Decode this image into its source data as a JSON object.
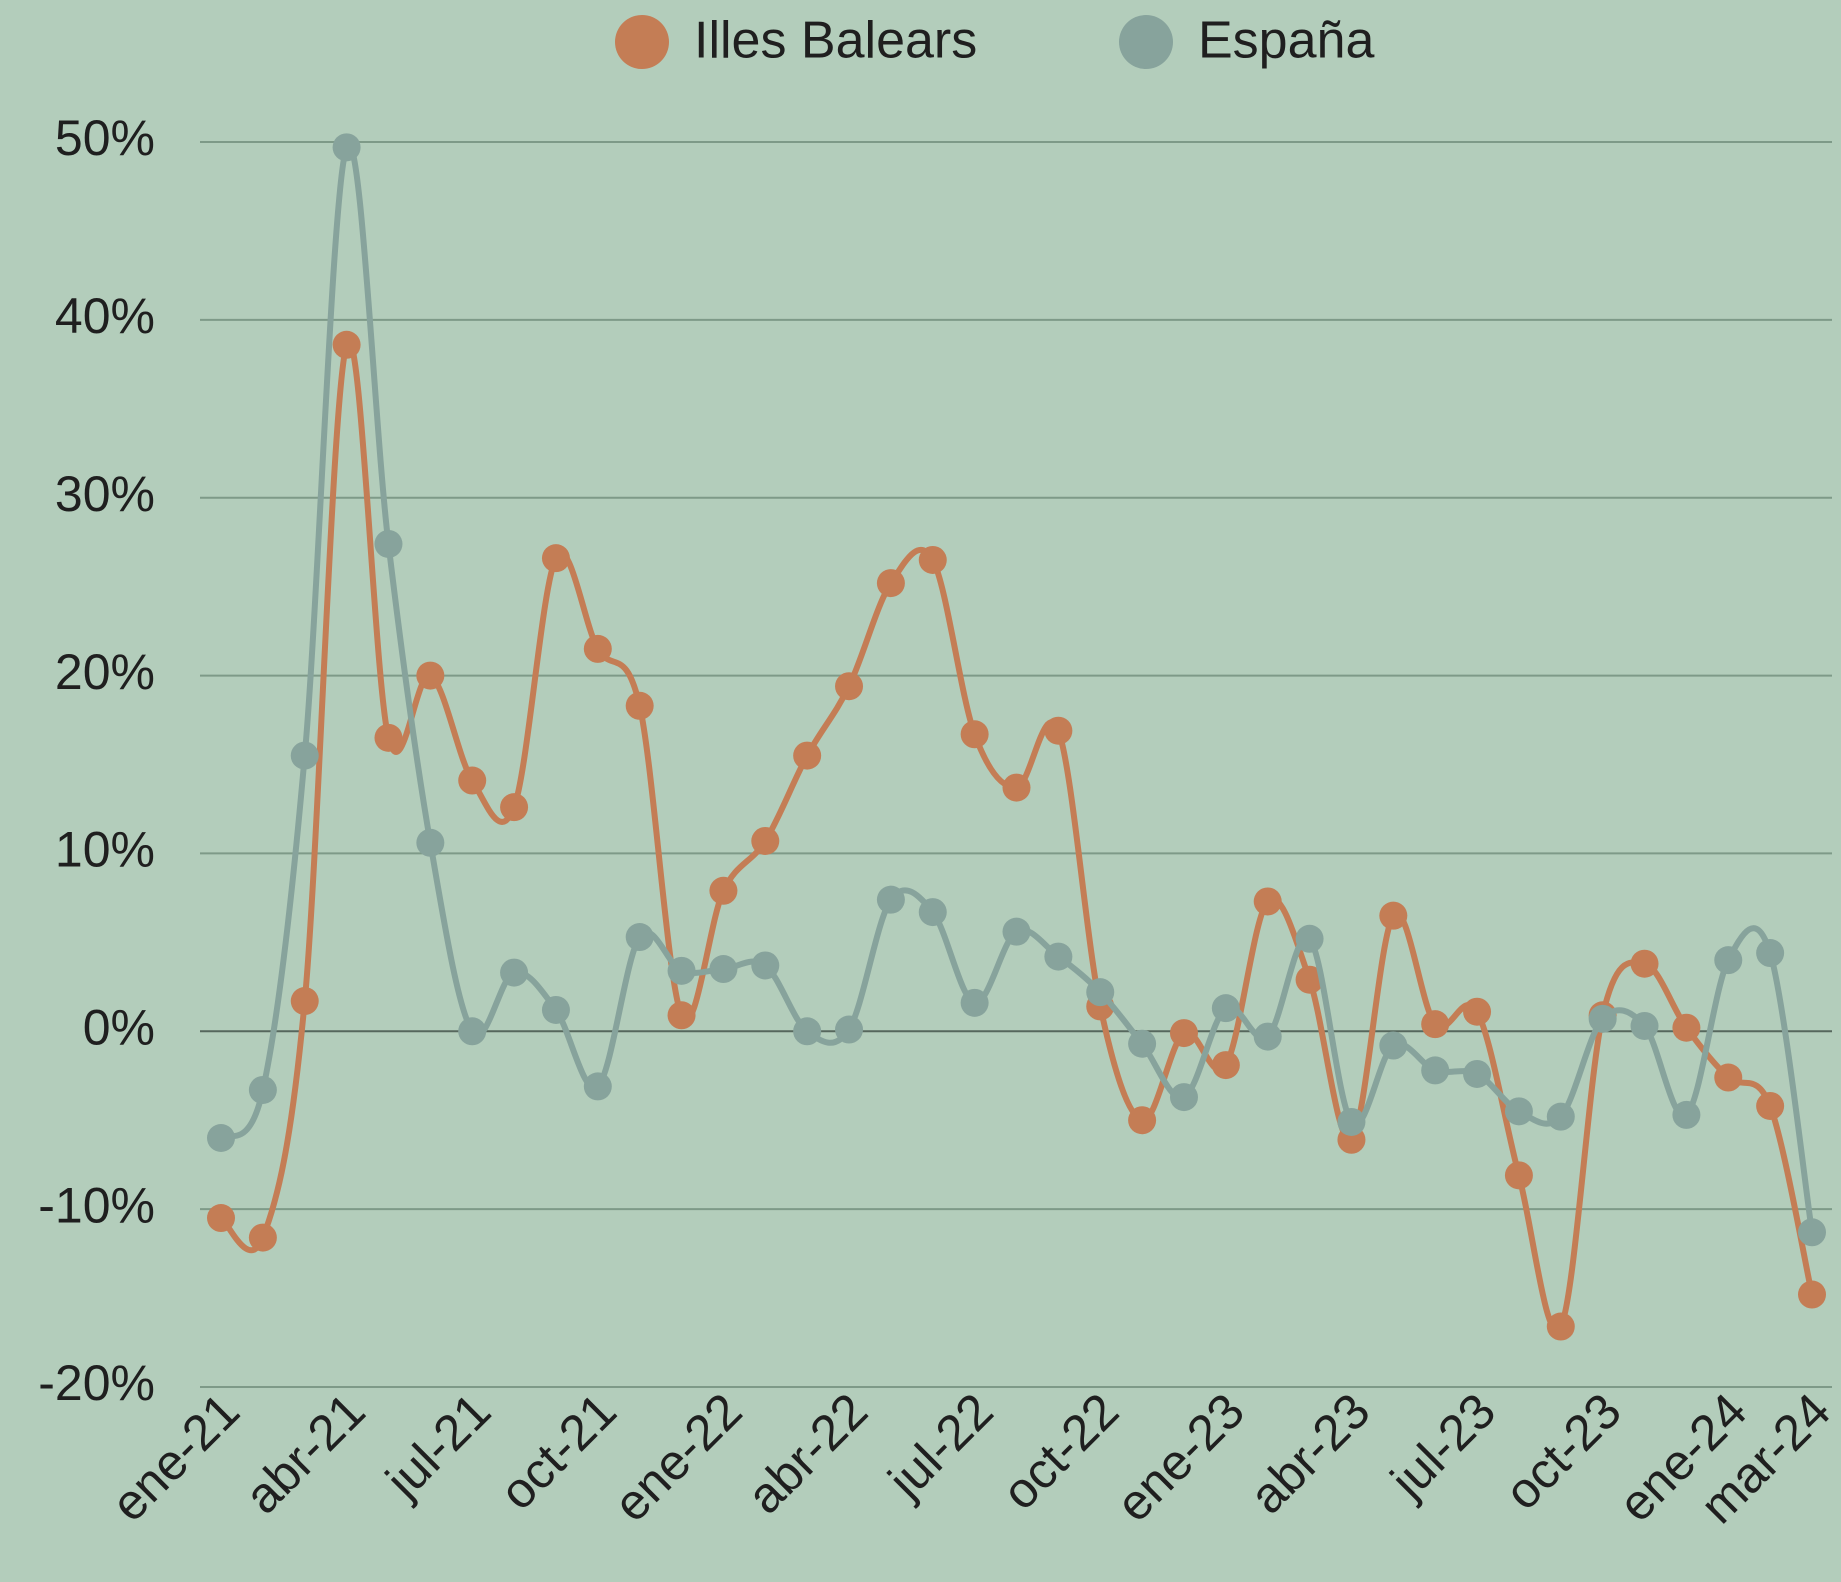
{
  "chart_data": {
    "type": "line",
    "categories": [
      "ene-21",
      null,
      null,
      "abr-21",
      null,
      null,
      "jul-21",
      null,
      null,
      "oct-21",
      null,
      null,
      "ene-22",
      null,
      null,
      "abr-22",
      null,
      null,
      "jul-22",
      null,
      null,
      "oct-22",
      null,
      null,
      "ene-23",
      null,
      null,
      "abr-23",
      null,
      null,
      "jul-23",
      null,
      null,
      "oct-23",
      null,
      null,
      "ene-24",
      null,
      "mar-24"
    ],
    "series": [
      {
        "name": "Illes Balears",
        "color": "#c47d55",
        "values": [
          -10.5,
          -11.6,
          1.7,
          38.6,
          16.5,
          20.0,
          14.1,
          12.6,
          26.6,
          21.5,
          18.3,
          0.9,
          7.9,
          10.7,
          15.5,
          19.4,
          25.2,
          26.5,
          16.7,
          13.7,
          16.9,
          1.4,
          -5.0,
          -0.1,
          -1.9,
          7.3,
          2.9,
          -6.1,
          6.5,
          0.4,
          1.1,
          -8.1,
          -16.6,
          0.9,
          3.8,
          0.2,
          -2.6,
          -4.2,
          -14.8
        ]
      },
      {
        "name": "España",
        "color": "#87a39c",
        "values": [
          -6.0,
          -3.3,
          15.5,
          49.7,
          27.4,
          10.6,
          0.0,
          3.3,
          1.2,
          -3.1,
          5.3,
          3.4,
          3.5,
          3.7,
          0.0,
          0.1,
          7.4,
          6.7,
          1.6,
          5.6,
          4.2,
          2.2,
          -0.7,
          -3.7,
          1.3,
          -0.3,
          5.2,
          -5.1,
          -0.8,
          -2.2,
          -2.4,
          -4.5,
          -4.8,
          0.7,
          0.3,
          -4.7,
          4.0,
          4.4,
          -11.3
        ]
      }
    ],
    "ylim": [
      -20,
      50
    ],
    "yticks": [
      {
        "value": -20,
        "label": "-20%"
      },
      {
        "value": -10,
        "label": "-10%"
      },
      {
        "value": 0,
        "label": "0%"
      },
      {
        "value": 10,
        "label": "10%"
      },
      {
        "value": 20,
        "label": "20%"
      },
      {
        "value": 30,
        "label": "30%"
      },
      {
        "value": 40,
        "label": "40%"
      },
      {
        "value": 50,
        "label": "50%"
      }
    ],
    "grid": true,
    "smooth": true,
    "legend": "top"
  }
}
